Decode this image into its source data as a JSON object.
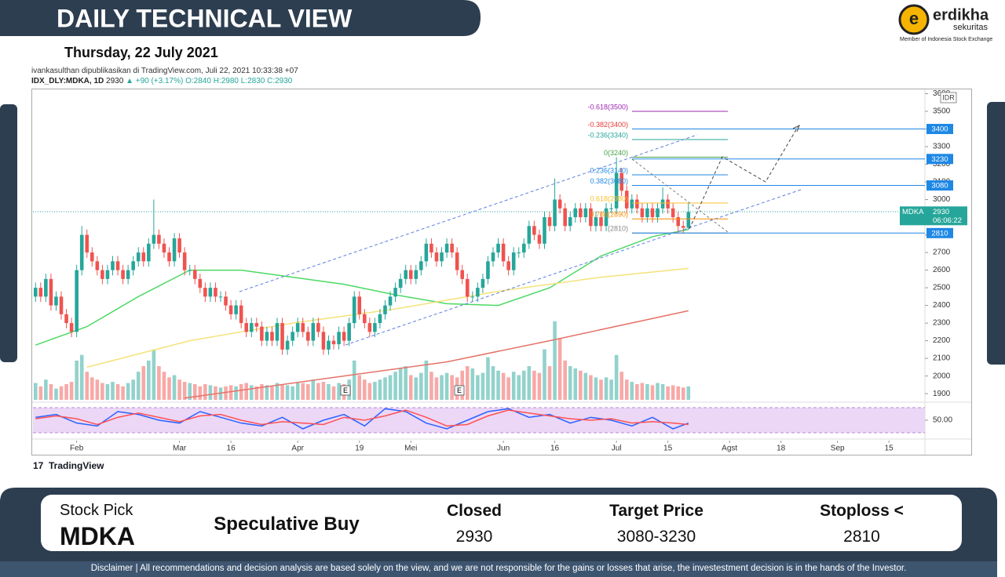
{
  "header": {
    "title": "DAILY TECHNICAL VIEW",
    "date": "Thursday, 22 July 2021",
    "brand": "erdikha",
    "brand_sub": "sekuritas",
    "brand_note": "Member of Indonesia Stock Exchange"
  },
  "publisher": {
    "line": "ivankasulthan dipublikasikan di TradingView.com, Juli 22, 2021 10:33:38 +07",
    "symbol": "IDX_DLY:MDKA, 1D",
    "last": "2930",
    "change": "▲ +90 (+3.17%)",
    "open": "O:2840",
    "high": "H:2980",
    "low": "L:2830",
    "close": "C:2930",
    "source": "TradingView"
  },
  "chart_data": {
    "type": "candlestick",
    "xlim": [
      -0.5,
      173
    ],
    "xticks": [
      {
        "value": 8,
        "label": "Feb"
      },
      {
        "value": 28,
        "label": "Mar"
      },
      {
        "value": 38,
        "label": "16"
      },
      {
        "value": 51,
        "label": "Apr"
      },
      {
        "value": 63,
        "label": "19"
      },
      {
        "value": 73,
        "label": "Mei"
      },
      {
        "value": 91,
        "label": "Jun"
      },
      {
        "value": 101,
        "label": "16"
      },
      {
        "value": 113,
        "label": "Jul"
      },
      {
        "value": 123,
        "label": "15"
      },
      {
        "value": 135,
        "label": "Agst"
      },
      {
        "value": 145,
        "label": "18"
      },
      {
        "value": 156,
        "label": "Sep"
      },
      {
        "value": 166,
        "label": "15"
      }
    ],
    "ylim": [
      1865,
      3620
    ],
    "yticks": [
      1900,
      2000,
      2100,
      2200,
      2300,
      2400,
      2500,
      2600,
      2700,
      2800,
      2900,
      3000,
      3100,
      3200,
      3300,
      3400,
      3500,
      3600
    ],
    "currency": "IDR",
    "up_color": "#26a69a",
    "down_color": "#ef5350",
    "open": [
      2450,
      2500,
      2450,
      2550,
      2400,
      2450,
      2350,
      2300,
      2250,
      2600,
      2800,
      2700,
      2650,
      2600,
      2550,
      2600,
      2650,
      2600,
      2550,
      2600,
      2650,
      2700,
      2650,
      2750,
      2800,
      2750,
      2700,
      2650,
      2780,
      2700,
      2600,
      2600,
      2550,
      2500,
      2450,
      2500,
      2450,
      2450,
      2400,
      2350,
      2400,
      2300,
      2250,
      2300,
      2280,
      2200,
      2250,
      2200,
      2300,
      2150,
      2200,
      2250,
      2300,
      2250,
      2200,
      2300,
      2250,
      2150,
      2200,
      2180,
      2250,
      2200,
      2300,
      2450,
      2350,
      2300,
      2250,
      2300,
      2350,
      2400,
      2450,
      2500,
      2550,
      2600,
      2550,
      2600,
      2650,
      2750,
      2700,
      2650,
      2700,
      2750,
      2700,
      2600,
      2550,
      2450,
      2450,
      2500,
      2550,
      2650,
      2700,
      2750,
      2650,
      2600,
      2700,
      2700,
      2750,
      2850,
      2800,
      2750,
      2900,
      2850,
      3000,
      2950,
      2850,
      2900,
      2950,
      2900,
      2950,
      2850,
      2900,
      2850,
      2950,
      2950,
      3150,
      3050,
      2950,
      3000,
      2950,
      2900,
      2950,
      2900,
      2950,
      3000,
      2950,
      2900,
      2850,
      2840
    ],
    "high": [
      2530,
      2530,
      2580,
      2580,
      2480,
      2480,
      2380,
      2330,
      2630,
      2850,
      2830,
      2730,
      2680,
      2630,
      2630,
      2680,
      2680,
      2630,
      2630,
      2680,
      2730,
      2730,
      2780,
      3000,
      2830,
      2780,
      2730,
      2810,
      2810,
      2730,
      2630,
      2630,
      2580,
      2530,
      2530,
      2530,
      2480,
      2480,
      2430,
      2430,
      2430,
      2330,
      2330,
      2330,
      2310,
      2280,
      2280,
      2330,
      2330,
      2230,
      2280,
      2330,
      2330,
      2280,
      2330,
      2330,
      2280,
      2230,
      2230,
      2280,
      2280,
      2330,
      2480,
      2480,
      2380,
      2330,
      2330,
      2380,
      2430,
      2480,
      2530,
      2580,
      2630,
      2630,
      2630,
      2680,
      2780,
      2780,
      2730,
      2730,
      2780,
      2780,
      2730,
      2630,
      2580,
      2480,
      2530,
      2580,
      2680,
      2730,
      2780,
      2780,
      2680,
      2730,
      2730,
      2780,
      2880,
      2880,
      2830,
      2930,
      2930,
      3120,
      3030,
      2980,
      2930,
      2980,
      2980,
      2980,
      2980,
      2930,
      2930,
      2980,
      2980,
      3240,
      3180,
      3080,
      3030,
      3030,
      2980,
      2980,
      2980,
      2980,
      3070,
      3030,
      2980,
      2930,
      2880,
      2980
    ],
    "low": [
      2420,
      2420,
      2420,
      2370,
      2370,
      2320,
      2270,
      2220,
      2220,
      2570,
      2670,
      2620,
      2570,
      2520,
      2520,
      2570,
      2570,
      2520,
      2520,
      2570,
      2620,
      2620,
      2620,
      2720,
      2720,
      2670,
      2620,
      2620,
      2670,
      2570,
      2570,
      2520,
      2470,
      2420,
      2420,
      2420,
      2420,
      2370,
      2320,
      2320,
      2270,
      2220,
      2220,
      2250,
      2170,
      2170,
      2170,
      2170,
      2120,
      2120,
      2170,
      2220,
      2220,
      2170,
      2170,
      2220,
      2120,
      2120,
      2150,
      2150,
      2170,
      2170,
      2270,
      2320,
      2270,
      2220,
      2220,
      2270,
      2320,
      2370,
      2420,
      2470,
      2520,
      2520,
      2520,
      2570,
      2620,
      2670,
      2620,
      2620,
      2670,
      2670,
      2570,
      2520,
      2420,
      2420,
      2420,
      2470,
      2520,
      2620,
      2670,
      2620,
      2570,
      2570,
      2670,
      2670,
      2720,
      2770,
      2720,
      2720,
      2820,
      2820,
      2920,
      2820,
      2820,
      2870,
      2870,
      2870,
      2820,
      2820,
      2820,
      2820,
      2920,
      2920,
      3020,
      2920,
      2920,
      2920,
      2870,
      2870,
      2870,
      2870,
      2920,
      2920,
      2870,
      2810,
      2810,
      2830
    ],
    "close": [
      2500,
      2450,
      2550,
      2400,
      2450,
      2350,
      2300,
      2250,
      2600,
      2800,
      2700,
      2650,
      2600,
      2550,
      2600,
      2650,
      2600,
      2550,
      2600,
      2650,
      2700,
      2650,
      2750,
      2800,
      2750,
      2700,
      2650,
      2780,
      2700,
      2600,
      2600,
      2550,
      2500,
      2450,
      2500,
      2450,
      2450,
      2400,
      2350,
      2400,
      2300,
      2250,
      2300,
      2280,
      2200,
      2250,
      2200,
      2300,
      2150,
      2200,
      2250,
      2300,
      2250,
      2200,
      2300,
      2250,
      2150,
      2200,
      2180,
      2250,
      2200,
      2300,
      2450,
      2350,
      2300,
      2250,
      2300,
      2350,
      2400,
      2450,
      2500,
      2550,
      2600,
      2550,
      2600,
      2650,
      2750,
      2700,
      2650,
      2700,
      2750,
      2700,
      2600,
      2550,
      2450,
      2450,
      2500,
      2550,
      2650,
      2700,
      2750,
      2650,
      2600,
      2700,
      2700,
      2750,
      2850,
      2800,
      2750,
      2900,
      2850,
      3000,
      2950,
      2850,
      2900,
      2950,
      2900,
      2950,
      2850,
      2900,
      2850,
      2950,
      2950,
      3150,
      3050,
      2950,
      3000,
      2950,
      2900,
      2950,
      2900,
      2950,
      3000,
      2950,
      2900,
      2850,
      2840,
      2930
    ],
    "volume": [
      15,
      12,
      18,
      14,
      10,
      12,
      14,
      16,
      35,
      40,
      25,
      20,
      18,
      15,
      14,
      16,
      14,
      12,
      15,
      18,
      25,
      30,
      35,
      45,
      30,
      25,
      20,
      22,
      18,
      16,
      15,
      14,
      12,
      14,
      13,
      12,
      11,
      12,
      13,
      12,
      14,
      15,
      13,
      12,
      14,
      13,
      12,
      15,
      14,
      13,
      12,
      16,
      15,
      14,
      18,
      15,
      16,
      14,
      12,
      15,
      14,
      18,
      35,
      22,
      18,
      15,
      16,
      18,
      20,
      22,
      25,
      28,
      30,
      22,
      20,
      24,
      35,
      25,
      20,
      22,
      24,
      22,
      20,
      26,
      30,
      28,
      22,
      24,
      38,
      30,
      26,
      24,
      20,
      25,
      22,
      26,
      30,
      26,
      24,
      45,
      30,
      70,
      55,
      35,
      30,
      28,
      26,
      24,
      22,
      20,
      18,
      20,
      18,
      40,
      25,
      18,
      16,
      14,
      15,
      14,
      13,
      15,
      14,
      12,
      13,
      12,
      11,
      12
    ],
    "volume_lim": [
      0,
      276
    ],
    "moving_averages": [
      {
        "color": "#4cd964",
        "x": [
          0,
          10,
          20,
          30,
          40,
          50,
          60,
          70,
          80,
          90,
          100,
          110,
          120,
          127
        ],
        "values": [
          2175,
          2280,
          2450,
          2600,
          2600,
          2560,
          2520,
          2460,
          2410,
          2400,
          2500,
          2680,
          2790,
          2830
        ]
      },
      {
        "color": "#f5e27a",
        "x": [
          10,
          30,
          50,
          70,
          90,
          110,
          127
        ],
        "values": [
          2050,
          2200,
          2300,
          2380,
          2480,
          2560,
          2610
        ]
      },
      {
        "color": "#e57368",
        "x": [
          29,
          60,
          80,
          100,
          127
        ],
        "values": [
          1875,
          2000,
          2080,
          2200,
          2370
        ]
      }
    ],
    "stoch_ylim": [
      -10,
      110
    ],
    "stoch_ticks": [
      {
        "value": 50,
        "label": "50.00"
      }
    ],
    "stochastic": [
      {
        "color": "#2962ff",
        "x": [
          0,
          4,
          8,
          12,
          16,
          20,
          24,
          28,
          32,
          36,
          40,
          44,
          48,
          52,
          56,
          60,
          64,
          68,
          72,
          76,
          80,
          84,
          88,
          92,
          96,
          100,
          104,
          108,
          112,
          116,
          120,
          124,
          127
        ],
        "values": [
          60,
          70,
          40,
          30,
          80,
          70,
          50,
          40,
          80,
          60,
          40,
          30,
          60,
          20,
          50,
          70,
          30,
          90,
          80,
          40,
          20,
          50,
          80,
          90,
          60,
          70,
          40,
          60,
          50,
          30,
          60,
          20,
          40
        ]
      },
      {
        "color": "#ff5252",
        "x": [
          0,
          4,
          8,
          12,
          16,
          20,
          24,
          28,
          32,
          36,
          40,
          44,
          48,
          52,
          56,
          60,
          64,
          68,
          72,
          76,
          80,
          84,
          88,
          92,
          96,
          100,
          104,
          108,
          112,
          116,
          120,
          124,
          127
        ],
        "values": [
          55,
          65,
          55,
          35,
          60,
          75,
          60,
          45,
          65,
          70,
          50,
          35,
          45,
          40,
          35,
          60,
          50,
          65,
          85,
          60,
          30,
          35,
          65,
          85,
          75,
          65,
          55,
          50,
          55,
          40,
          45,
          40,
          35
        ]
      }
    ],
    "fib_levels": [
      {
        "label": "-0.618(3500)",
        "value": 3500,
        "color": "#9c27b0"
      },
      {
        "label": "-0.382(3400)",
        "value": 3400,
        "color": "#e53935"
      },
      {
        "label": "-0.236(3340)",
        "value": 3340,
        "color": "#26a69a"
      },
      {
        "label": "0(3240)",
        "value": 3240,
        "color": "#43a047"
      },
      {
        "label": "0.236(3140)",
        "value": 3140,
        "color": "#1e88e5"
      },
      {
        "label": "0.382(3080)",
        "value": 3080,
        "color": "#1e88e5"
      },
      {
        "label": "0.618(2980)",
        "value": 2980,
        "color": "#fbc02d"
      },
      {
        "label": "0.786(2890)",
        "value": 2890,
        "color": "#fb8c00"
      },
      {
        "label": "(2810)",
        "value": 2810,
        "color": "#888888"
      }
    ],
    "price_tags": [
      3400,
      3230,
      3080,
      2810
    ],
    "tag_color": "#1e88e5",
    "last_tag": {
      "name": "MDKA",
      "value": 2930,
      "countdown": "06:06:22",
      "color": "#26a69a"
    },
    "event_markers": [
      "E",
      "E"
    ]
  },
  "summary": {
    "stock_pick_label": "Stock Pick",
    "stock_pick": "MDKA",
    "recommendation": "Speculative Buy",
    "closed_label": "Closed",
    "closed": 2930,
    "target_label": "Target Price",
    "target": "3080-3230",
    "stoploss_label": "Stoploss <",
    "stoploss": 2810
  },
  "disclaimer": "Disclaimer | All recommendations and decision analysis are based solely on the view, and we are not responsible for the gains or losses that arise, the investestment  decision is in the hands of the Investor."
}
